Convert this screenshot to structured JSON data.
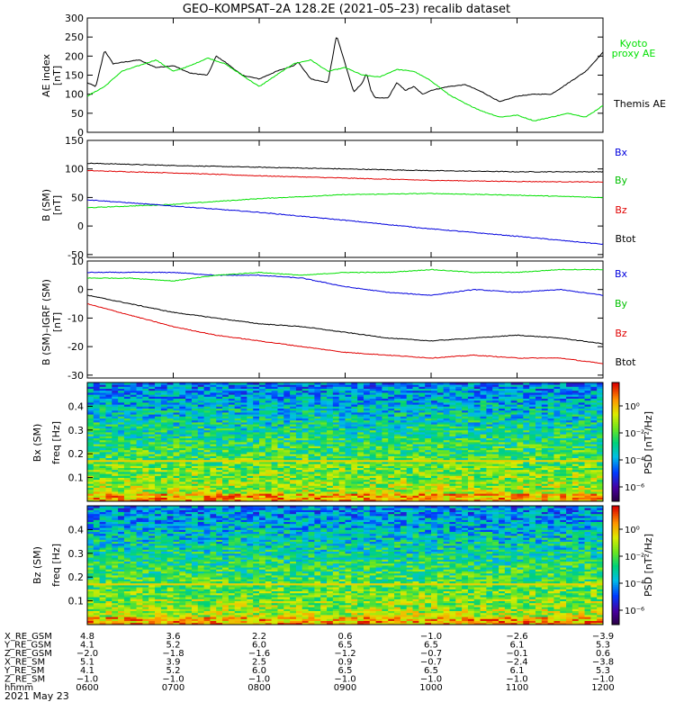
{
  "title": "GEO–KOMPSAT–2A 128.2E (2021–05–23) recalib dataset",
  "colors": {
    "black": "#000000",
    "blue": "#0000dd",
    "green": "#00e000",
    "red": "#e00000"
  },
  "x_ticks": [
    "0600",
    "0700",
    "0800",
    "0900",
    "1000",
    "1100",
    "1200"
  ],
  "chart_data": [
    {
      "type": "line",
      "panel": "ae",
      "ylabel": "AE index",
      "yunit": "[nT]",
      "ylim": [
        0,
        300
      ],
      "yticks": [
        "0",
        "50",
        "100",
        "150",
        "200",
        "250",
        "300"
      ],
      "xlim": [
        6,
        12
      ],
      "legend": [
        {
          "label": "Kyoto",
          "color": "#00e000"
        },
        {
          "label": "proxy AE",
          "color": "#00e000"
        },
        {
          "label": "Themis AE",
          "color": "#000000"
        }
      ],
      "series": [
        {
          "name": "Themis AE",
          "color": "#000000",
          "x": [
            6.0,
            6.1,
            6.2,
            6.3,
            6.45,
            6.6,
            6.8,
            7.0,
            7.2,
            7.4,
            7.5,
            7.6,
            7.8,
            8.0,
            8.2,
            8.4,
            8.45,
            8.6,
            8.8,
            8.9,
            9.0,
            9.1,
            9.2,
            9.25,
            9.3,
            9.35,
            9.5,
            9.6,
            9.7,
            9.8,
            9.9,
            10.0,
            10.2,
            10.4,
            10.6,
            10.8,
            11.0,
            11.2,
            11.4,
            11.6,
            11.8,
            12.0
          ],
          "y": [
            130,
            120,
            215,
            180,
            185,
            190,
            170,
            175,
            155,
            150,
            200,
            185,
            150,
            140,
            160,
            175,
            185,
            140,
            130,
            255,
            180,
            105,
            130,
            155,
            110,
            90,
            90,
            130,
            110,
            120,
            100,
            110,
            120,
            125,
            105,
            80,
            95,
            100,
            100,
            130,
            160,
            210
          ]
        },
        {
          "name": "Kyoto proxy AE",
          "color": "#00e000",
          "x": [
            6.0,
            6.2,
            6.4,
            6.6,
            6.8,
            7.0,
            7.2,
            7.4,
            7.6,
            7.8,
            8.0,
            8.2,
            8.4,
            8.6,
            8.8,
            9.0,
            9.2,
            9.4,
            9.6,
            9.8,
            10.0,
            10.2,
            10.4,
            10.6,
            10.8,
            11.0,
            11.2,
            11.4,
            11.6,
            11.8,
            12.0
          ],
          "y": [
            95,
            120,
            160,
            175,
            190,
            160,
            175,
            195,
            180,
            150,
            120,
            150,
            180,
            190,
            160,
            170,
            150,
            145,
            165,
            160,
            135,
            100,
            75,
            55,
            40,
            45,
            30,
            40,
            50,
            40,
            70
          ]
        }
      ]
    },
    {
      "type": "line",
      "panel": "b",
      "ylabel": "B (SM)",
      "yunit": "[nT]",
      "ylim": [
        -55,
        150
      ],
      "yticks": [
        "-50",
        "0",
        "50",
        "100",
        "150"
      ],
      "xlim": [
        6,
        12
      ],
      "legend": [
        {
          "label": "Bx",
          "color": "#0000dd"
        },
        {
          "label": "By",
          "color": "#00e000"
        },
        {
          "label": "Bz",
          "color": "#e00000"
        },
        {
          "label": "Btot",
          "color": "#000000"
        }
      ],
      "series": [
        {
          "name": "Btot",
          "color": "#000000",
          "x": [
            6,
            7,
            8,
            9,
            10,
            11,
            12
          ],
          "y": [
            110,
            106,
            103,
            100,
            97,
            95,
            95
          ]
        },
        {
          "name": "Bz",
          "color": "#e00000",
          "x": [
            6,
            7,
            8,
            9,
            10,
            11,
            12
          ],
          "y": [
            97,
            93,
            88,
            84,
            80,
            78,
            77
          ]
        },
        {
          "name": "By",
          "color": "#00e000",
          "x": [
            6,
            7,
            8,
            9,
            10,
            11,
            12
          ],
          "y": [
            32,
            38,
            48,
            55,
            57,
            54,
            50
          ]
        },
        {
          "name": "Bx",
          "color": "#0000dd",
          "x": [
            6,
            7,
            8,
            9,
            10,
            11,
            12
          ],
          "y": [
            46,
            35,
            24,
            10,
            -5,
            -18,
            -32
          ]
        }
      ]
    },
    {
      "type": "line",
      "panel": "bdiff",
      "ylabel": "B (SM)–IGRF (SM)",
      "yunit": "[nT]",
      "ylim": [
        -31,
        10
      ],
      "yticks": [
        "-30",
        "-20",
        "-10",
        "0",
        "10"
      ],
      "xlim": [
        6,
        12
      ],
      "legend": [
        {
          "label": "Bx",
          "color": "#0000dd"
        },
        {
          "label": "By",
          "color": "#00e000"
        },
        {
          "label": "Bz",
          "color": "#e00000"
        },
        {
          "label": "Btot",
          "color": "#000000"
        }
      ],
      "series": [
        {
          "name": "Bx",
          "color": "#0000dd",
          "x": [
            6,
            6.5,
            7,
            7.5,
            8,
            8.5,
            9,
            9.5,
            10,
            10.5,
            11,
            11.5,
            12
          ],
          "y": [
            6,
            6,
            6,
            5,
            5,
            4,
            1,
            -1,
            -2,
            0,
            -1,
            0,
            -2
          ]
        },
        {
          "name": "By",
          "color": "#00e000",
          "x": [
            6,
            6.5,
            7,
            7.5,
            8,
            8.5,
            9,
            9.5,
            10,
            10.5,
            11,
            11.5,
            12
          ],
          "y": [
            4,
            4,
            3,
            5,
            6,
            5,
            6,
            6,
            7,
            6,
            6,
            7,
            7
          ]
        },
        {
          "name": "Btot",
          "color": "#000000",
          "x": [
            6,
            6.5,
            7,
            7.5,
            8,
            8.5,
            9,
            9.5,
            10,
            10.5,
            11,
            11.5,
            12
          ],
          "y": [
            -2,
            -5,
            -8,
            -10,
            -12,
            -13,
            -15,
            -17,
            -18,
            -17,
            -16,
            -17,
            -19
          ]
        },
        {
          "name": "Bz",
          "color": "#e00000",
          "x": [
            6,
            6.5,
            7,
            7.5,
            8,
            8.5,
            9,
            9.5,
            10,
            10.5,
            11,
            11.5,
            12
          ],
          "y": [
            -5,
            -9,
            -13,
            -16,
            -18,
            -20,
            -22,
            -23,
            -24,
            -23,
            -24,
            -24,
            -26
          ]
        }
      ]
    },
    {
      "type": "heatmap",
      "panel": "spec_bx",
      "ylabel": "Bx (SM)",
      "yunit": "freq [Hz]",
      "ylim": [
        0,
        0.5
      ],
      "yticks": [
        "0.1",
        "0.2",
        "0.3",
        "0.4"
      ],
      "zlabel": "PSD [nT²/Hz]",
      "zticks": [
        "10⁰",
        "10⁻²",
        "10⁻⁴",
        "10⁻⁶"
      ],
      "feature_line_hz": 0.17
    },
    {
      "type": "heatmap",
      "panel": "spec_bz",
      "ylabel": "Bz (SM)",
      "yunit": "freq [Hz]",
      "ylim": [
        0,
        0.5
      ],
      "yticks": [
        "0.1",
        "0.2",
        "0.3",
        "0.4"
      ],
      "zlabel": "PSD [nT²/Hz]",
      "zticks": [
        "10⁰",
        "10⁻²",
        "10⁻⁴",
        "10⁻⁶"
      ],
      "feature_line_hz": 0.17
    }
  ],
  "ephemeris": {
    "rows": [
      {
        "label": "X_RE_GSM",
        "values": [
          "4.8",
          "3.6",
          "2.2",
          "0.6",
          "−1.0",
          "−2.6",
          "−3.9"
        ]
      },
      {
        "label": "Y_RE_GSM",
        "values": [
          "4.1",
          "5.2",
          "6.0",
          "6.5",
          "6.5",
          "6.1",
          "5.3"
        ]
      },
      {
        "label": "Z_RE_GSM",
        "values": [
          "−2.0",
          "−1.8",
          "−1.6",
          "−1.2",
          "−0.7",
          "−0.1",
          "0.6"
        ]
      },
      {
        "label": "X_RE_SM",
        "values": [
          "5.1",
          "3.9",
          "2.5",
          "0.9",
          "−0.7",
          "−2.4",
          "−3.8"
        ]
      },
      {
        "label": "Y_RE_SM",
        "values": [
          "4.1",
          "5.2",
          "6.0",
          "6.5",
          "6.5",
          "6.1",
          "5.3"
        ]
      },
      {
        "label": "Z_RE_SM",
        "values": [
          "−1.0",
          "−1.0",
          "−1.0",
          "−1.0",
          "−1.0",
          "−1.0",
          "−1.0"
        ]
      },
      {
        "label": "hhmm",
        "values": [
          "0600",
          "0700",
          "0800",
          "0900",
          "1000",
          "1100",
          "1200"
        ]
      }
    ],
    "date": "2021 May 23"
  }
}
